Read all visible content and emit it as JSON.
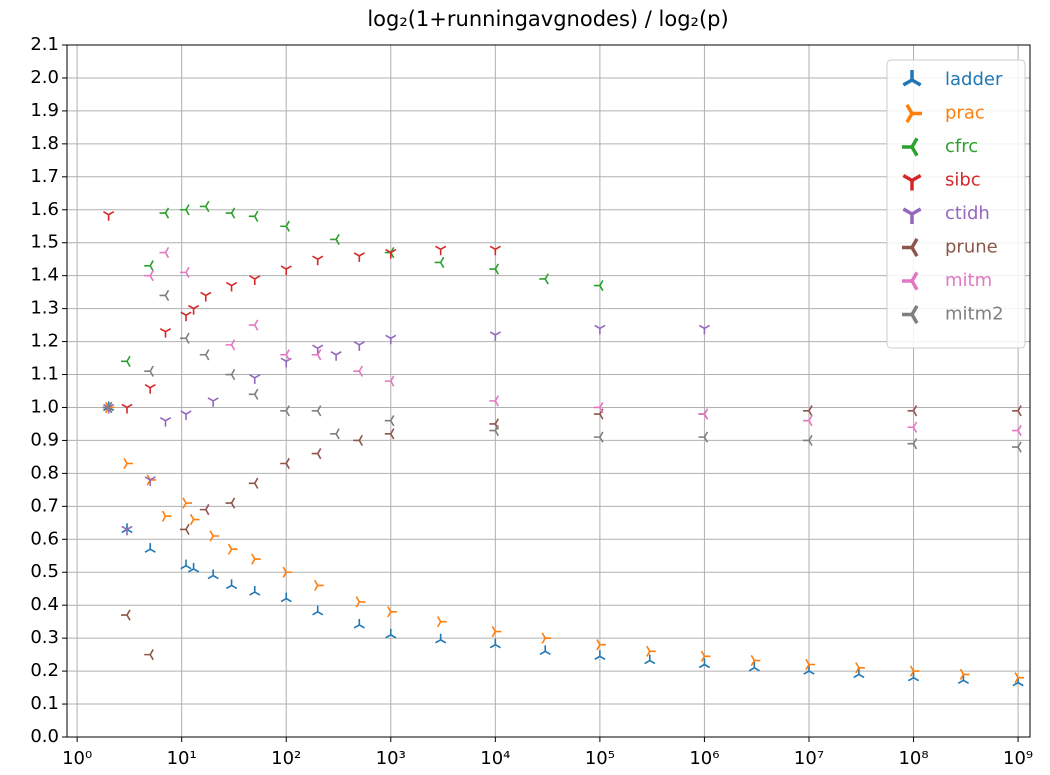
{
  "chart_data": {
    "type": "scatter",
    "title": "log₂(1+runningavgnodes) / log₂(p)",
    "xlog": true,
    "xlim": [
      0.8,
      1300000000
    ],
    "ylim": [
      0,
      2.1
    ],
    "xticks": [
      {
        "value": 1,
        "label": "10⁰"
      },
      {
        "value": 10,
        "label": "10¹"
      },
      {
        "value": 100,
        "label": "10²"
      },
      {
        "value": 1000,
        "label": "10³"
      },
      {
        "value": 10000,
        "label": "10⁴"
      },
      {
        "value": 100000,
        "label": "10⁵"
      },
      {
        "value": 1000000,
        "label": "10⁶"
      },
      {
        "value": 10000000,
        "label": "10⁷"
      },
      {
        "value": 100000000,
        "label": "10⁸"
      },
      {
        "value": 1000000000,
        "label": "10⁹"
      }
    ],
    "yticks": [
      {
        "value": 0,
        "label": "0.0"
      },
      0.1,
      0.2,
      0.3,
      0.4,
      0.5,
      0.6,
      0.7,
      0.8,
      0.9,
      {
        "value": 1,
        "label": "1.0"
      },
      1.1,
      1.2,
      1.3,
      1.4,
      1.5,
      1.6,
      1.7,
      1.8,
      1.9,
      {
        "value": 2,
        "label": "2.0"
      },
      2.1
    ],
    "grid": true,
    "legend": "upper right",
    "series": [
      {
        "name": "ladder",
        "color": "#1f77b4",
        "marker_angle": 0,
        "x": [
          2,
          3,
          5,
          11,
          13,
          20,
          30,
          50,
          100,
          200,
          500,
          1000,
          3000,
          10000,
          30000,
          100000,
          300000,
          1000000,
          3000000,
          10000000,
          30000000,
          100000000,
          300000000,
          1000000000
        ],
        "values": [
          1.0,
          0.63,
          0.57,
          0.52,
          0.51,
          0.49,
          0.46,
          0.44,
          0.42,
          0.38,
          0.34,
          0.31,
          0.295,
          0.28,
          0.26,
          0.245,
          0.232,
          0.22,
          0.21,
          0.2,
          0.19,
          0.18,
          0.172,
          0.165
        ]
      },
      {
        "name": "prac",
        "color": "#ff7f0e",
        "marker_angle": 90,
        "x": [
          2,
          3,
          5,
          7,
          11,
          13,
          20,
          30,
          50,
          100,
          200,
          500,
          1000,
          3000,
          10000,
          30000,
          100000,
          300000,
          1000000,
          3000000,
          10000000,
          30000000,
          100000000,
          300000000,
          1000000000
        ],
        "values": [
          1.0,
          0.83,
          0.78,
          0.67,
          0.71,
          0.66,
          0.61,
          0.57,
          0.54,
          0.5,
          0.46,
          0.41,
          0.38,
          0.35,
          0.32,
          0.3,
          0.28,
          0.26,
          0.245,
          0.232,
          0.22,
          0.21,
          0.2,
          0.19,
          0.18
        ]
      },
      {
        "name": "cfrc",
        "color": "#2ca02c",
        "marker_angle": 270,
        "x": [
          2,
          3,
          5,
          7,
          11,
          17,
          30,
          50,
          100,
          300,
          1000,
          3000,
          10000,
          30000,
          100000
        ],
        "values": [
          1.0,
          1.14,
          1.43,
          1.59,
          1.6,
          1.61,
          1.59,
          1.58,
          1.55,
          1.51,
          1.47,
          1.44,
          1.42,
          1.39,
          1.37
        ]
      },
      {
        "name": "sibc",
        "color": "#d62728",
        "marker_angle": 180,
        "x": [
          2,
          3,
          5,
          7,
          11,
          13,
          17,
          30,
          50,
          100,
          200,
          500,
          1000,
          3000,
          10000
        ],
        "values": [
          1.585,
          1.0,
          1.06,
          1.23,
          1.28,
          1.3,
          1.34,
          1.37,
          1.39,
          1.42,
          1.45,
          1.46,
          1.47,
          1.48,
          1.48
        ]
      },
      {
        "name": "ctidh",
        "color": "#9467bd",
        "marker_angle": 180,
        "x": [
          2,
          3,
          5,
          7,
          11,
          20,
          50,
          100,
          200,
          300,
          500,
          1000,
          10000,
          100000,
          1000000
        ],
        "values": [
          1.0,
          0.63,
          0.78,
          0.96,
          0.98,
          1.02,
          1.09,
          1.14,
          1.18,
          1.16,
          1.19,
          1.21,
          1.22,
          1.24,
          1.24
        ]
      },
      {
        "name": "prune",
        "color": "#8c564b",
        "marker_angle": 150,
        "x": [
          2,
          3,
          5,
          11,
          17,
          30,
          50,
          100,
          200,
          500,
          1000,
          10000,
          100000,
          1000000,
          10000000,
          100000000,
          1000000000
        ],
        "values": [
          1.0,
          0.37,
          0.25,
          0.63,
          0.69,
          0.71,
          0.77,
          0.83,
          0.86,
          0.9,
          0.92,
          0.95,
          0.98,
          0.98,
          0.99,
          0.99,
          0.99
        ]
      },
      {
        "name": "mitm",
        "color": "#e377c2",
        "marker_angle": 270,
        "x": [
          2,
          5,
          7,
          11,
          30,
          50,
          100,
          200,
          500,
          1000,
          10000,
          100000,
          1000000,
          10000000,
          100000000,
          1000000000
        ],
        "values": [
          1.0,
          1.4,
          1.47,
          1.41,
          1.19,
          1.25,
          1.16,
          1.16,
          1.11,
          1.08,
          1.02,
          1.0,
          0.98,
          0.96,
          0.94,
          0.93
        ]
      },
      {
        "name": "mitm2",
        "color": "#7f7f7f",
        "marker_angle": 30,
        "x": [
          2,
          5,
          7,
          11,
          17,
          30,
          50,
          100,
          200,
          300,
          1000,
          10000,
          100000,
          1000000,
          10000000,
          100000000,
          1000000000
        ],
        "values": [
          1.0,
          1.11,
          1.34,
          1.21,
          1.16,
          1.1,
          1.04,
          0.99,
          0.99,
          0.92,
          0.96,
          0.93,
          0.91,
          0.91,
          0.9,
          0.89,
          0.88
        ]
      }
    ]
  }
}
